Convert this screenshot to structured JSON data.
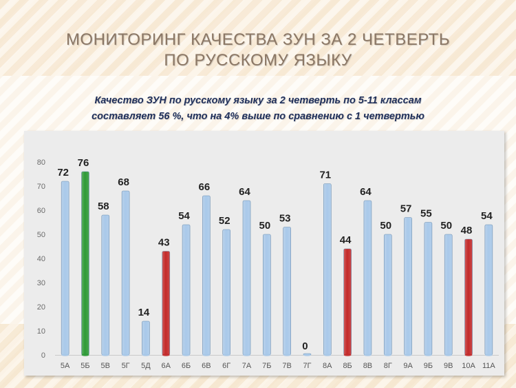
{
  "title": {
    "line1": "Мониторинг качества ЗУН за 2  четверть",
    "line2": "по  русскому  языку"
  },
  "subtitle": {
    "line1": "Качество ЗУН по русскому языку  за 2 четверть  по 5-11 классам",
    "line2": "составляет  56 %, что на 4% выше по сравнению с 1 четвертью"
  },
  "chart_data": {
    "type": "bar",
    "categories": [
      "5А",
      "5Б",
      "5В",
      "5Г",
      "5Д",
      "6А",
      "6Б",
      "6В",
      "6Г",
      "7А",
      "7Б",
      "7В",
      "7Г",
      "8А",
      "8Б",
      "8В",
      "8Г",
      "9А",
      "9Б",
      "9В",
      "10А",
      "11А"
    ],
    "values": [
      72,
      76,
      58,
      68,
      14,
      43,
      54,
      66,
      52,
      64,
      50,
      53,
      0,
      71,
      44,
      64,
      50,
      57,
      55,
      50,
      48,
      54
    ],
    "colors": [
      "#a9c9ea",
      "#2e9a36",
      "#a9c9ea",
      "#a9c9ea",
      "#a9c9ea",
      "#c42a2a",
      "#a9c9ea",
      "#a9c9ea",
      "#a9c9ea",
      "#a9c9ea",
      "#a9c9ea",
      "#a9c9ea",
      "#a9c9ea",
      "#a9c9ea",
      "#c42a2a",
      "#a9c9ea",
      "#a9c9ea",
      "#a9c9ea",
      "#a9c9ea",
      "#a9c9ea",
      "#c42a2a",
      "#a9c9ea"
    ],
    "ylim": [
      0,
      80
    ],
    "yticks": [
      0,
      10,
      20,
      30,
      40,
      50,
      60,
      70,
      80
    ],
    "grid": false,
    "legend": "none"
  }
}
